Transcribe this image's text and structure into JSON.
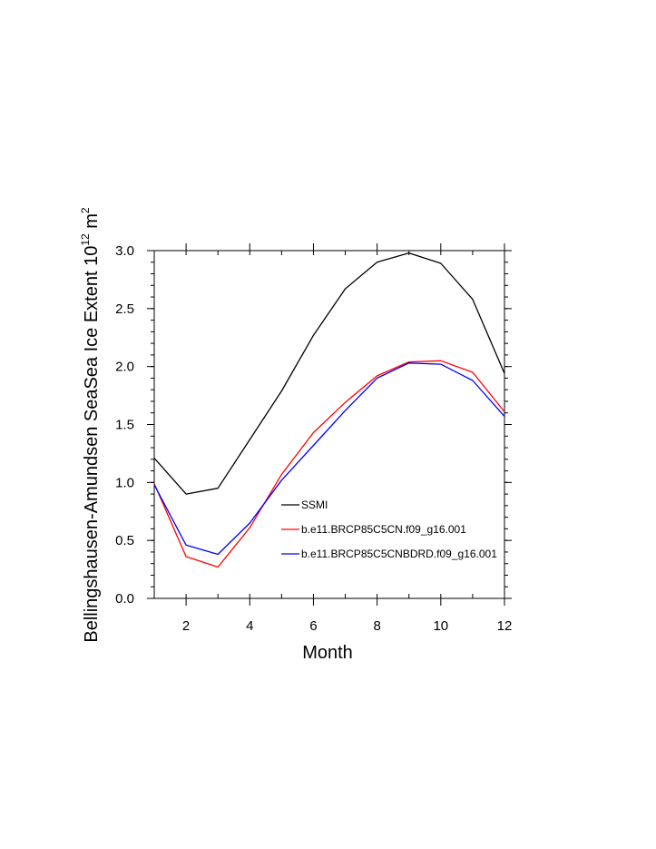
{
  "chart_data": {
    "type": "line",
    "xlabel": "Month",
    "ylabel": {
      "text": "Bellingshausen-Amundsen SeaSea Ice Extent 10",
      "exponent": "12",
      "unit": " m",
      "unit_exponent": "2"
    },
    "xlim": [
      1,
      12
    ],
    "ylim": [
      0,
      3
    ],
    "xticks": [
      2,
      4,
      6,
      8,
      10,
      12
    ],
    "xtick_labels": [
      "2",
      "4",
      "6",
      "8",
      "10",
      "12"
    ],
    "yticks": [
      0,
      0.5,
      1,
      1.5,
      2,
      2.5,
      3
    ],
    "ytick_labels": [
      "0.0",
      "0.5",
      "1.0",
      "1.5",
      "2.0",
      "2.5",
      "3.0"
    ],
    "grid": false,
    "legend_position": "lower-right inside plot",
    "x": [
      1,
      2,
      3,
      4,
      5,
      6,
      7,
      8,
      9,
      10,
      11,
      12
    ],
    "series": [
      {
        "name": "SSMI",
        "color": "#000000",
        "values": [
          1.21,
          0.9,
          0.95,
          1.37,
          1.79,
          2.27,
          2.67,
          2.9,
          2.98,
          2.89,
          2.58,
          1.94
        ]
      },
      {
        "name": "b.e11.BRCP85C5CN.f09_g16.001",
        "color": "#ff0000",
        "values": [
          0.99,
          0.36,
          0.27,
          0.61,
          1.07,
          1.43,
          1.69,
          1.92,
          2.04,
          2.05,
          1.95,
          1.61
        ]
      },
      {
        "name": "b.e11.BRCP85C5CNBDRD.f09_g16.001",
        "color": "#0000ff",
        "values": [
          0.98,
          0.46,
          0.38,
          0.65,
          1.02,
          1.32,
          1.62,
          1.9,
          2.03,
          2.02,
          1.88,
          1.57
        ]
      }
    ]
  }
}
